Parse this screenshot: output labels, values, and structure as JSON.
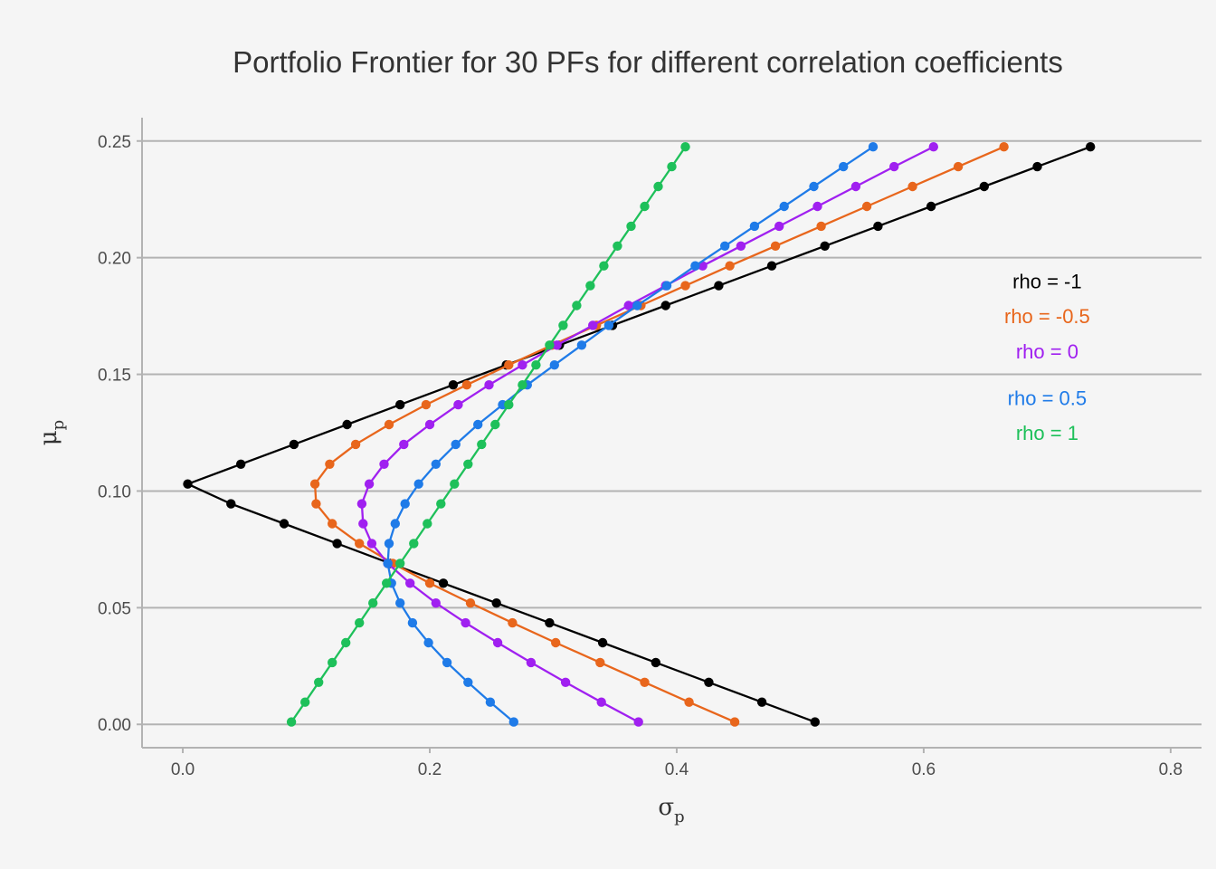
{
  "chart_data": {
    "type": "line",
    "title": "Portfolio Frontier for 30 PFs for different correlation coefficients",
    "xlabel": "σ",
    "xlabel_sub": "p",
    "ylabel": "μ",
    "ylabel_sub": "p",
    "xlim": [
      -0.033,
      0.825
    ],
    "ylim": [
      -0.01,
      0.26
    ],
    "x_ticks": [
      0.0,
      0.2,
      0.4,
      0.6,
      0.8
    ],
    "x_tick_labels": [
      "0.0",
      "0.2",
      "0.4",
      "0.6",
      "0.8"
    ],
    "y_ticks": [
      0.0,
      0.05,
      0.1,
      0.15,
      0.2,
      0.25
    ],
    "y_tick_labels": [
      "0.00",
      "0.05",
      "0.10",
      "0.15",
      "0.20",
      "0.25"
    ],
    "mu": [
      0.001,
      0.0095,
      0.018,
      0.0265,
      0.035,
      0.0435,
      0.052,
      0.0605,
      0.069,
      0.0775,
      0.086,
      0.0945,
      0.103,
      0.1115,
      0.12,
      0.1285,
      0.137,
      0.1455,
      0.154,
      0.1625,
      0.171,
      0.1795,
      0.188,
      0.1965,
      0.205,
      0.2135,
      0.222,
      0.2305,
      0.239,
      0.2475
    ],
    "series": [
      {
        "name": "rho = -1",
        "color": "#000000",
        "sigma": [
          0.512,
          0.469,
          0.426,
          0.383,
          0.34,
          0.297,
          0.254,
          0.211,
          0.168,
          0.125,
          0.082,
          0.039,
          0.004,
          0.047,
          0.09,
          0.133,
          0.176,
          0.219,
          0.262,
          0.305,
          0.348,
          0.391,
          0.434,
          0.477,
          0.52,
          0.563,
          0.606,
          0.649,
          0.692,
          0.735
        ]
      },
      {
        "name": "rho = -0.5",
        "color": "#e8661c",
        "sigma": [
          0.447,
          0.41,
          0.374,
          0.338,
          0.302,
          0.267,
          0.233,
          0.2,
          0.17,
          0.143,
          0.121,
          0.108,
          0.107,
          0.119,
          0.14,
          0.167,
          0.197,
          0.23,
          0.264,
          0.299,
          0.335,
          0.371,
          0.407,
          0.443,
          0.48,
          0.517,
          0.554,
          0.591,
          0.628,
          0.665
        ]
      },
      {
        "name": "rho = 0",
        "color": "#a020f0",
        "sigma": [
          0.369,
          0.339,
          0.31,
          0.282,
          0.255,
          0.229,
          0.205,
          0.184,
          0.166,
          0.153,
          0.146,
          0.145,
          0.151,
          0.163,
          0.179,
          0.2,
          0.223,
          0.248,
          0.275,
          0.303,
          0.332,
          0.361,
          0.391,
          0.421,
          0.452,
          0.483,
          0.514,
          0.545,
          0.576,
          0.608
        ]
      },
      {
        "name": "rho = 0.5",
        "color": "#1f7be8",
        "sigma": [
          0.268,
          0.249,
          0.231,
          0.214,
          0.199,
          0.186,
          0.176,
          0.169,
          0.166,
          0.167,
          0.172,
          0.18,
          0.191,
          0.205,
          0.221,
          0.239,
          0.259,
          0.279,
          0.301,
          0.323,
          0.345,
          0.368,
          0.392,
          0.415,
          0.439,
          0.463,
          0.487,
          0.511,
          0.535,
          0.559
        ]
      },
      {
        "name": "rho = 1",
        "color": "#1ec05a",
        "sigma": [
          0.088,
          0.099,
          0.11,
          0.121,
          0.132,
          0.143,
          0.154,
          0.165,
          0.176,
          0.187,
          0.198,
          0.209,
          0.22,
          0.231,
          0.242,
          0.253,
          0.264,
          0.275,
          0.286,
          0.297,
          0.308,
          0.319,
          0.33,
          0.341,
          0.352,
          0.363,
          0.374,
          0.385,
          0.396,
          0.407
        ]
      }
    ],
    "annotations": [
      {
        "text": "rho = -1",
        "x": 0.7,
        "y": 0.19,
        "color": "#000000"
      },
      {
        "text": "rho = -0.5",
        "x": 0.7,
        "y": 0.175,
        "color": "#e8661c"
      },
      {
        "text": "rho = 0",
        "x": 0.7,
        "y": 0.16,
        "color": "#a020f0"
      },
      {
        "text": "rho = 0.5",
        "x": 0.7,
        "y": 0.14,
        "color": "#1f7be8"
      },
      {
        "text": "rho = 1",
        "x": 0.7,
        "y": 0.125,
        "color": "#1ec05a"
      }
    ],
    "grid": "horizontal",
    "legend": "none"
  }
}
